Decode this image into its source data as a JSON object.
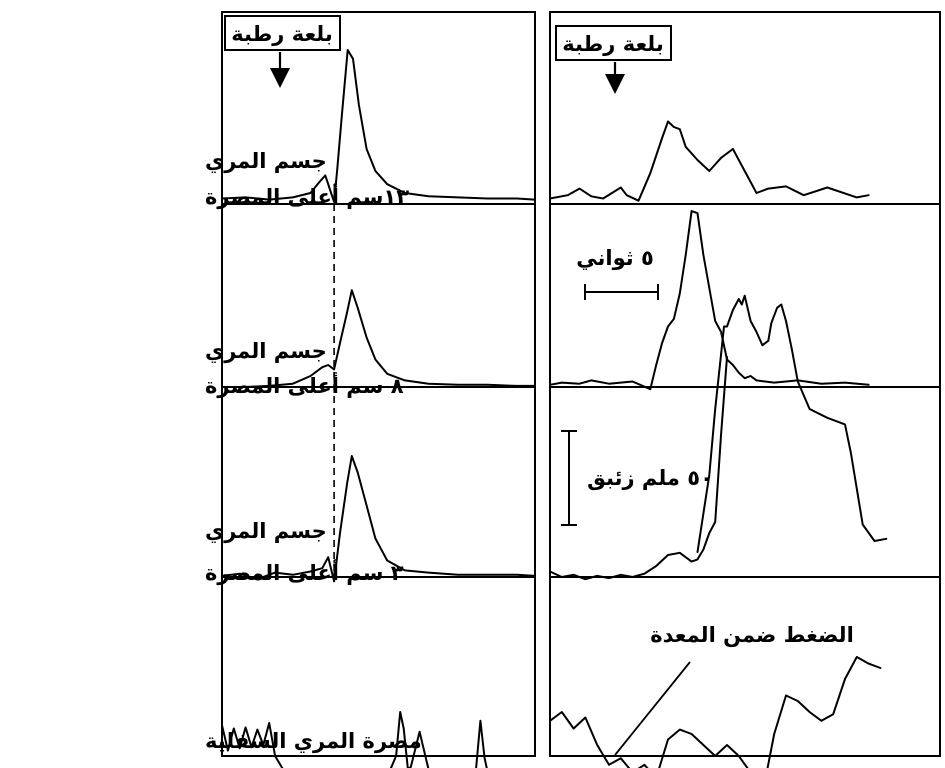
{
  "chart_data": {
    "type": "line",
    "row_labels": [
      [
        "جسم المري",
        "١٣سم أعلى المصرة"
      ],
      [
        "جسم المري",
        "٨ سم أعلى المصرة"
      ],
      [
        "جسم المري",
        "٣ سم أعلى المصرة"
      ],
      [
        "مصرة المري السفلية"
      ]
    ],
    "panels": [
      {
        "name": "left",
        "bolus_label": "بلعة رطبة",
        "bolus_time": 10,
        "dashed_marker_time": 19
      },
      {
        "name": "right",
        "bolus_label": "بلعة رطبة",
        "bolus_time": 10
      }
    ],
    "annotations": {
      "time_scale": "٥ ثواني",
      "time_scale_seconds": 5,
      "pressure_scale": "٥٠ ملم زئبق",
      "pressure_scale_mmHg": 50,
      "gastric_pressure": "الضغط ضمن المعدة"
    },
    "x_unit": "s",
    "y_unit": "mmHg",
    "traces": [
      {
        "panel": "left",
        "row": 0,
        "points": [
          [
            0,
            5
          ],
          [
            4,
            6
          ],
          [
            8,
            4
          ],
          [
            12,
            6
          ],
          [
            15,
            10
          ],
          [
            16.5,
            20
          ],
          [
            17.5,
            26
          ],
          [
            18.5,
            10
          ],
          [
            19,
            2
          ],
          [
            19.5,
            30
          ],
          [
            20.3,
            80
          ],
          [
            21.3,
            140
          ],
          [
            22.2,
            132
          ],
          [
            23.2,
            90
          ],
          [
            24.5,
            50
          ],
          [
            26,
            30
          ],
          [
            28,
            18
          ],
          [
            31,
            10
          ],
          [
            35,
            7
          ],
          [
            40,
            6
          ],
          [
            45,
            5
          ],
          [
            50,
            5
          ],
          [
            53,
            4
          ]
        ]
      },
      {
        "panel": "left",
        "row": 1,
        "points": [
          [
            0,
            0
          ],
          [
            4,
            0
          ],
          [
            8,
            1
          ],
          [
            12,
            3
          ],
          [
            15,
            10
          ],
          [
            17,
            18
          ],
          [
            18,
            20
          ],
          [
            19,
            16
          ],
          [
            20,
            40
          ],
          [
            21.2,
            68
          ],
          [
            22,
            88
          ],
          [
            23,
            72
          ],
          [
            24.5,
            45
          ],
          [
            26,
            25
          ],
          [
            28,
            12
          ],
          [
            31,
            6
          ],
          [
            35,
            3
          ],
          [
            40,
            2
          ],
          [
            45,
            2
          ],
          [
            50,
            1
          ],
          [
            53,
            1
          ]
        ]
      },
      {
        "panel": "left",
        "row": 2,
        "points": [
          [
            0,
            1
          ],
          [
            3,
            3
          ],
          [
            6,
            -2
          ],
          [
            9,
            4
          ],
          [
            12,
            2
          ],
          [
            15,
            5
          ],
          [
            17,
            8
          ],
          [
            18,
            18
          ],
          [
            19,
            -4
          ],
          [
            20,
            40
          ],
          [
            21.2,
            85
          ],
          [
            22,
            110
          ],
          [
            23,
            95
          ],
          [
            24.5,
            65
          ],
          [
            26,
            35
          ],
          [
            28,
            15
          ],
          [
            31,
            6
          ],
          [
            35,
            4
          ],
          [
            40,
            2
          ],
          [
            45,
            2
          ],
          [
            50,
            2
          ],
          [
            53,
            1
          ]
        ]
      },
      {
        "panel": "left",
        "row": 3,
        "points": [
          [
            0,
            18
          ],
          [
            1,
            -5
          ],
          [
            2,
            15
          ],
          [
            3,
            -3
          ],
          [
            4,
            16
          ],
          [
            5,
            -2
          ],
          [
            6,
            14
          ],
          [
            7,
            0
          ],
          [
            8,
            20
          ],
          [
            9,
            -10
          ],
          [
            11,
            -28
          ],
          [
            15,
            -30
          ],
          [
            25,
            -30
          ],
          [
            28,
            -29
          ],
          [
            29.5,
            -10
          ],
          [
            30.2,
            30
          ],
          [
            30.8,
            15
          ],
          [
            31.5,
            -22
          ],
          [
            32,
            -20
          ],
          [
            33.5,
            12
          ],
          [
            35,
            -22
          ],
          [
            40,
            -27
          ],
          [
            43,
            -25
          ],
          [
            43.8,
            22
          ],
          [
            44.5,
            -12
          ],
          [
            45,
            -24
          ],
          [
            47,
            -24
          ]
        ]
      },
      {
        "panel": "right",
        "row": 0,
        "points": [
          [
            0,
            5
          ],
          [
            3,
            8
          ],
          [
            5,
            14
          ],
          [
            7,
            7
          ],
          [
            9,
            5
          ],
          [
            12,
            15
          ],
          [
            13,
            8
          ],
          [
            15,
            3
          ],
          [
            17,
            28
          ],
          [
            19,
            60
          ],
          [
            20,
            75
          ],
          [
            21,
            70
          ],
          [
            22,
            68
          ],
          [
            23,
            52
          ],
          [
            25,
            40
          ],
          [
            27,
            30
          ],
          [
            29,
            42
          ],
          [
            31,
            50
          ],
          [
            33,
            30
          ],
          [
            35,
            10
          ],
          [
            37,
            14
          ],
          [
            40,
            16
          ],
          [
            43,
            8
          ],
          [
            47,
            15
          ],
          [
            52,
            6
          ],
          [
            54,
            8
          ]
        ]
      },
      {
        "panel": "right",
        "row": 1,
        "points": [
          [
            0,
            2
          ],
          [
            2,
            4
          ],
          [
            5,
            3
          ],
          [
            7,
            6
          ],
          [
            10,
            3
          ],
          [
            14,
            5
          ],
          [
            17,
            -2
          ],
          [
            18,
            20
          ],
          [
            19,
            40
          ],
          [
            20,
            55
          ],
          [
            21,
            62
          ],
          [
            22,
            85
          ],
          [
            23,
            120
          ],
          [
            24,
            160
          ],
          [
            25,
            158
          ],
          [
            26,
            120
          ],
          [
            27,
            90
          ],
          [
            28,
            60
          ],
          [
            29,
            50
          ],
          [
            30,
            25
          ],
          [
            31,
            20
          ],
          [
            32,
            13
          ],
          [
            33,
            8
          ],
          [
            34,
            10
          ],
          [
            35,
            6
          ],
          [
            38,
            4
          ],
          [
            42,
            6
          ],
          [
            46,
            3
          ],
          [
            50,
            4
          ],
          [
            54,
            2
          ]
        ]
      },
      {
        "panel": "right",
        "row": 1,
        "points": [
          [
            25,
            -150
          ],
          [
            27,
            -80
          ],
          [
            28,
            -20
          ],
          [
            29,
            30
          ],
          [
            29.5,
            55
          ],
          [
            30,
            55
          ],
          [
            31,
            70
          ],
          [
            32,
            80
          ],
          [
            32.5,
            75
          ],
          [
            33,
            83
          ],
          [
            34,
            60
          ],
          [
            35,
            50
          ],
          [
            36,
            38
          ],
          [
            37,
            42
          ],
          [
            37.5,
            58
          ],
          [
            38.5,
            72
          ],
          [
            39.2,
            75
          ],
          [
            40,
            60
          ],
          [
            41,
            34
          ],
          [
            42,
            5
          ],
          [
            44,
            -20
          ],
          [
            47,
            -28
          ],
          [
            50,
            -34
          ],
          [
            51,
            -60
          ],
          [
            53,
            -125
          ],
          [
            55,
            -140
          ],
          [
            57,
            -138
          ]
        ]
      },
      {
        "panel": "right",
        "row": 2,
        "points": [
          [
            0,
            5
          ],
          [
            2,
            0
          ],
          [
            4,
            2
          ],
          [
            6,
            -2
          ],
          [
            8,
            1
          ],
          [
            10,
            -1
          ],
          [
            12,
            2
          ],
          [
            14,
            0
          ],
          [
            16,
            3
          ],
          [
            18,
            10
          ],
          [
            20,
            20
          ],
          [
            22,
            22
          ],
          [
            23,
            18
          ],
          [
            24,
            14
          ],
          [
            25,
            16
          ],
          [
            26,
            25
          ],
          [
            27,
            40
          ],
          [
            28,
            50
          ],
          [
            29,
            130
          ],
          [
            30,
            200
          ]
        ]
      },
      {
        "panel": "right",
        "row": 3,
        "points": [
          [
            0,
            22
          ],
          [
            2,
            30
          ],
          [
            4,
            15
          ],
          [
            6,
            25
          ],
          [
            8,
            0
          ],
          [
            10,
            -18
          ],
          [
            12,
            -12
          ],
          [
            14,
            -25
          ],
          [
            16,
            -18
          ],
          [
            18,
            -30
          ],
          [
            20,
            5
          ],
          [
            22,
            14
          ],
          [
            24,
            10
          ],
          [
            26,
            0
          ],
          [
            28,
            -10
          ],
          [
            30,
            0
          ],
          [
            32,
            -10
          ],
          [
            34,
            -25
          ],
          [
            36,
            -45
          ],
          [
            38,
            10
          ],
          [
            40,
            45
          ],
          [
            42,
            40
          ],
          [
            44,
            30
          ],
          [
            46,
            22
          ],
          [
            48,
            28
          ],
          [
            50,
            60
          ],
          [
            52,
            80
          ],
          [
            54,
            74
          ],
          [
            56,
            70
          ]
        ]
      }
    ]
  }
}
